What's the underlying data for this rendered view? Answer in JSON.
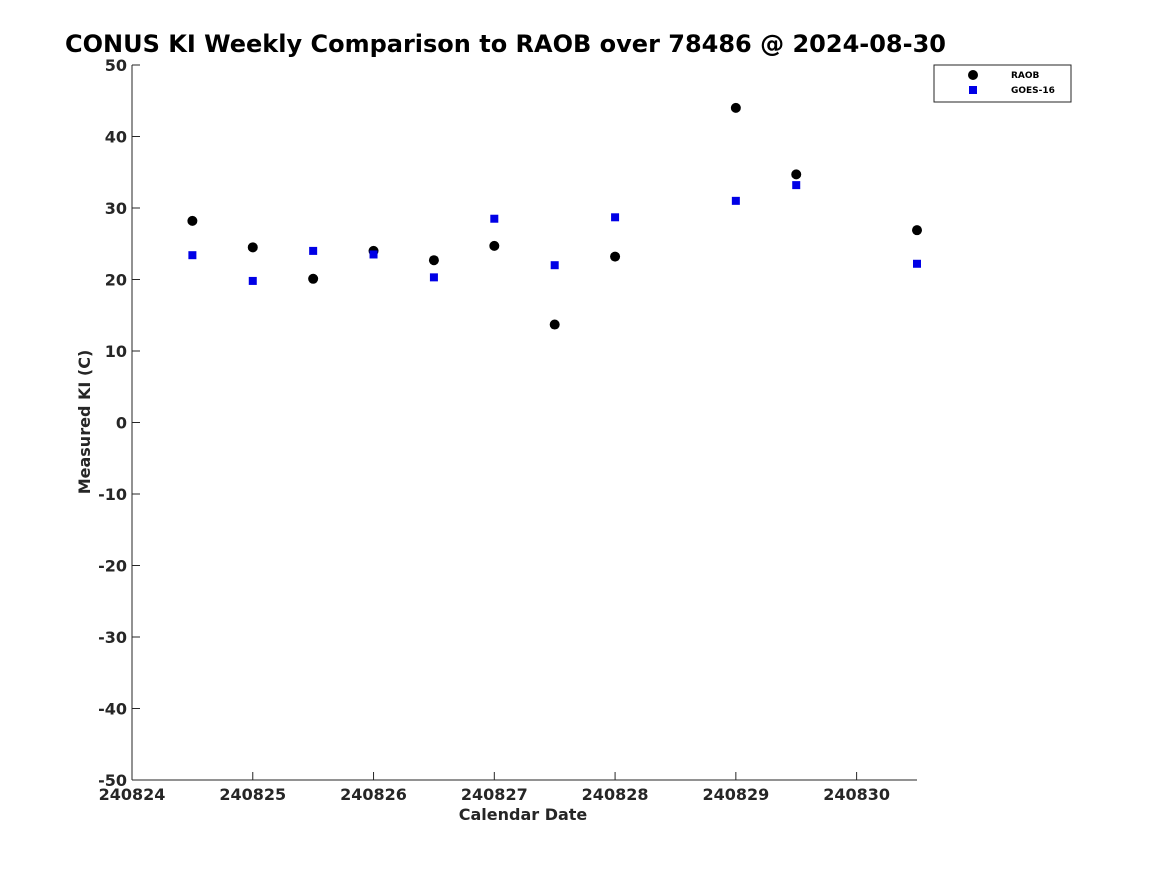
{
  "chart_data": {
    "type": "scatter",
    "title": "CONUS KI Weekly Comparison to RAOB over 78486 @ 2024-08-30",
    "xlabel": "Calendar Date",
    "ylabel": "Measured KI (C)",
    "x_ticks": [
      {
        "value": 240824,
        "label": "240824"
      },
      {
        "value": 240825,
        "label": "240825"
      },
      {
        "value": 240826,
        "label": "240826"
      },
      {
        "value": 240827,
        "label": "240827"
      },
      {
        "value": 240828,
        "label": "240828"
      },
      {
        "value": 240829,
        "label": "240829"
      },
      {
        "value": 240830,
        "label": "240830"
      }
    ],
    "xlim": [
      240824.0,
      240830.5
    ],
    "ylim": [
      -50,
      50
    ],
    "y_ticks": [
      50,
      40,
      30,
      20,
      10,
      0,
      -10,
      -20,
      -30,
      -40,
      -50
    ],
    "grid": false,
    "legend_position": "top-right",
    "series": [
      {
        "name": "RAOB",
        "marker": "circle",
        "color": "#000000",
        "x": [
          240824.5,
          240825.0,
          240825.5,
          240826.0,
          240826.5,
          240827.0,
          240827.5,
          240828.0,
          240829.0,
          240829.5,
          240830.5
        ],
        "y": [
          28.2,
          24.5,
          20.1,
          24.0,
          22.7,
          24.7,
          13.7,
          23.2,
          44.0,
          34.7,
          26.9
        ]
      },
      {
        "name": "GOES-16",
        "marker": "square",
        "color": "#0000e6",
        "x": [
          240824.5,
          240825.0,
          240825.5,
          240826.0,
          240826.5,
          240827.0,
          240827.5,
          240828.0,
          240829.0,
          240829.5,
          240830.5
        ],
        "y": [
          23.4,
          19.8,
          24.0,
          23.5,
          20.3,
          28.5,
          22.0,
          28.7,
          31.0,
          33.2,
          22.2
        ]
      }
    ]
  }
}
